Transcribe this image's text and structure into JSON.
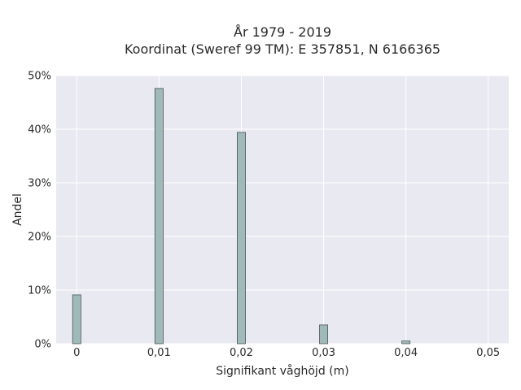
{
  "chart_data": {
    "type": "bar",
    "title_lines": [
      "År 1979 - 2019",
      "Koordinat (Sweref 99 TM): E 357851, N 6166365"
    ],
    "xlabel": "Signifikant våghöjd (m)",
    "ylabel": "Andel",
    "x": [
      0,
      0.01,
      0.02,
      0.03,
      0.04
    ],
    "values": [
      9.1,
      47.6,
      39.4,
      3.5,
      0.5
    ],
    "xlim": [
      -0.0025,
      0.0525
    ],
    "ylim": [
      0,
      50
    ],
    "x_ticks": [
      0,
      0.01,
      0.02,
      0.03,
      0.04,
      0.05
    ],
    "x_tick_labels": [
      "0",
      "0,01",
      "0,02",
      "0,03",
      "0,04",
      "0,05"
    ],
    "y_ticks": [
      0,
      10,
      20,
      30,
      40,
      50
    ],
    "y_tick_labels": [
      "0%",
      "10%",
      "20%",
      "30%",
      "40%",
      "50%"
    ],
    "bar_width": 0.001,
    "grid": true,
    "colors": {
      "plot_bg": "#e9e9f1",
      "grid": "#ffffff",
      "bar_fill": "#a0b9b9",
      "bar_stroke": "#4a5454"
    }
  }
}
